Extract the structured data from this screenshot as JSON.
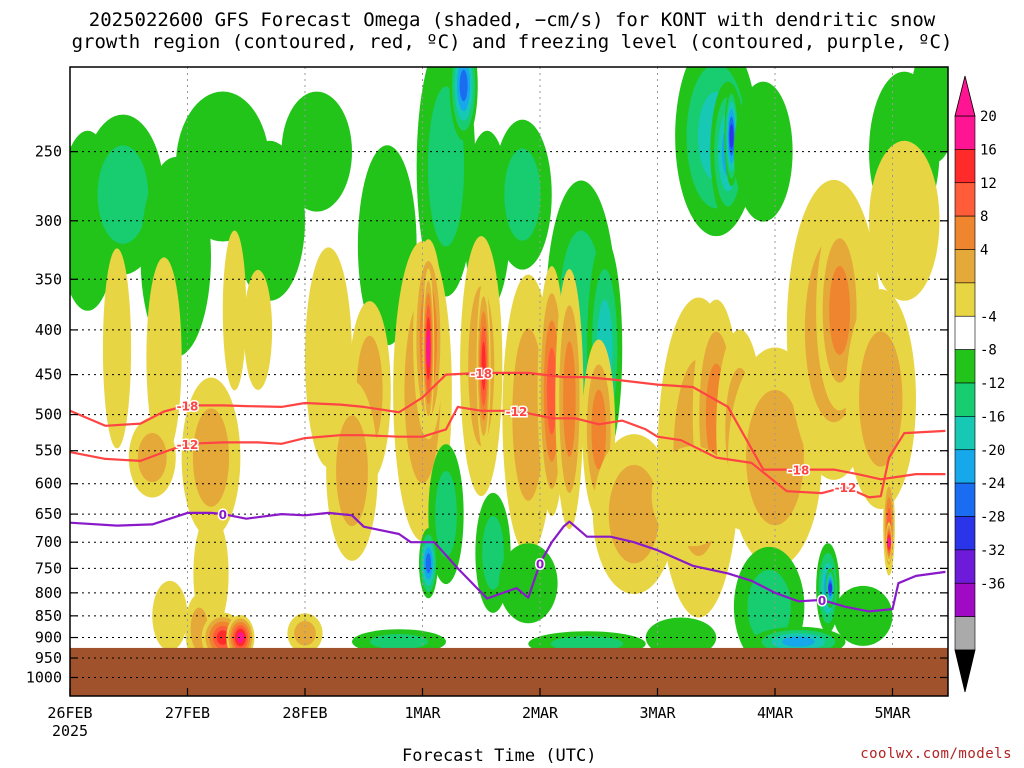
{
  "chart_data": {
    "type": "heatmap",
    "title_line1": "2025022600 GFS Forecast Omega (shaded, −cm/s) for KONT with dendritic snow",
    "title_line2": "growth region (contoured, red, ºC) and freezing level (contoured, purple, ºC)",
    "xlabel": "Forecast Time (UTC)",
    "ylabel": "",
    "credit": "coolwx.com/models",
    "x_ticks": [
      "26FEB",
      "27FEB",
      "28FEB",
      "1MAR",
      "2MAR",
      "3MAR",
      "4MAR",
      "5MAR"
    ],
    "x_year": "2025",
    "x_days_range": [
      0,
      7.45
    ],
    "y_ticks": [
      250,
      300,
      350,
      400,
      450,
      500,
      550,
      600,
      650,
      700,
      750,
      800,
      850,
      900,
      950,
      1000
    ],
    "y_range_hpa": [
      200,
      1050
    ],
    "y_scale": "log-pressure (inverted)",
    "grid": "dotted",
    "colorbar": {
      "labels": [
        20,
        16,
        12,
        8,
        4,
        -4,
        -8,
        -12,
        -16,
        -20,
        -24,
        -28,
        -32,
        -36
      ],
      "colors": [
        "#ff1493",
        "#ff2a2a",
        "#ff5c3a",
        "#f0852f",
        "#e5a93a",
        "#e8d544",
        "#ffffff",
        "#22c41a",
        "#18cc70",
        "#17c9b4",
        "#16a8ea",
        "#1a6cf0",
        "#2a34e8",
        "#6d1bd8",
        "#a00ac4",
        "#aaaaaa"
      ],
      "over_color": "#ff1493",
      "under_color": "#000000"
    },
    "ground_color": "#a0522d",
    "ground_top_hpa": 925,
    "contours": [
      {
        "label": "-18",
        "color": "#ff4444",
        "points": [
          [
            0,
            495
          ],
          [
            0.3,
            515
          ],
          [
            0.6,
            512
          ],
          [
            0.8,
            496
          ],
          [
            1.0,
            488
          ],
          [
            1.3,
            488
          ],
          [
            1.5,
            489
          ],
          [
            1.8,
            490
          ],
          [
            2.0,
            485
          ],
          [
            2.3,
            487
          ],
          [
            2.5,
            490
          ],
          [
            2.8,
            497
          ],
          [
            3.0,
            478
          ],
          [
            3.2,
            450
          ],
          [
            3.5,
            448
          ],
          [
            3.9,
            448
          ],
          [
            4.2,
            453
          ],
          [
            4.4,
            453
          ],
          [
            4.7,
            457
          ],
          [
            5.0,
            462
          ],
          [
            5.3,
            465
          ],
          [
            5.6,
            490
          ],
          [
            5.9,
            578
          ],
          [
            6.2,
            578
          ],
          [
            6.5,
            578
          ],
          [
            6.7,
            585
          ],
          [
            6.9,
            593
          ],
          [
            7.2,
            585
          ],
          [
            7.45,
            585
          ]
        ]
      },
      {
        "label": "-12",
        "color": "#ff4444",
        "points": [
          [
            0,
            552
          ],
          [
            0.3,
            562
          ],
          [
            0.6,
            565
          ],
          [
            0.8,
            552
          ],
          [
            1.0,
            540
          ],
          [
            1.3,
            538
          ],
          [
            1.6,
            538
          ],
          [
            1.8,
            540
          ],
          [
            2.0,
            532
          ],
          [
            2.3,
            528
          ],
          [
            2.5,
            528
          ],
          [
            2.8,
            530
          ],
          [
            3.0,
            530
          ],
          [
            3.2,
            520
          ],
          [
            3.3,
            490
          ],
          [
            3.5,
            495
          ],
          [
            3.8,
            495
          ],
          [
            4.1,
            505
          ],
          [
            4.3,
            505
          ],
          [
            4.5,
            513
          ],
          [
            4.7,
            508
          ],
          [
            4.9,
            520
          ],
          [
            5.0,
            530
          ],
          [
            5.2,
            535
          ],
          [
            5.5,
            560
          ],
          [
            5.8,
            568
          ],
          [
            6.1,
            612
          ],
          [
            6.4,
            615
          ],
          [
            6.6,
            605
          ],
          [
            6.8,
            622
          ],
          [
            6.9,
            620
          ],
          [
            6.97,
            560
          ],
          [
            7.1,
            525
          ],
          [
            7.45,
            522
          ]
        ]
      },
      {
        "label": "0",
        "color": "#8a1ac9",
        "points": [
          [
            0,
            665
          ],
          [
            0.4,
            670
          ],
          [
            0.7,
            668
          ],
          [
            1.0,
            648
          ],
          [
            1.2,
            648
          ],
          [
            1.3,
            650
          ],
          [
            1.5,
            658
          ],
          [
            1.8,
            650
          ],
          [
            2.0,
            652
          ],
          [
            2.2,
            648
          ],
          [
            2.4,
            652
          ],
          [
            2.5,
            672
          ],
          [
            2.8,
            685
          ],
          [
            2.9,
            700
          ],
          [
            3.1,
            700
          ],
          [
            3.3,
            750
          ],
          [
            3.55,
            812
          ],
          [
            3.8,
            790
          ],
          [
            3.9,
            810
          ],
          [
            4.0,
            740
          ],
          [
            4.1,
            700
          ],
          [
            4.2,
            672
          ],
          [
            4.25,
            663
          ],
          [
            4.4,
            690
          ],
          [
            4.6,
            690
          ],
          [
            4.8,
            700
          ],
          [
            5.0,
            715
          ],
          [
            5.3,
            745
          ],
          [
            5.6,
            760
          ],
          [
            5.8,
            775
          ],
          [
            6.0,
            800
          ],
          [
            6.2,
            818
          ],
          [
            6.4,
            815
          ],
          [
            6.6,
            830
          ],
          [
            6.8,
            840
          ],
          [
            7.0,
            835
          ],
          [
            7.05,
            780
          ],
          [
            7.2,
            765
          ],
          [
            7.45,
            757
          ]
        ]
      }
    ]
  }
}
